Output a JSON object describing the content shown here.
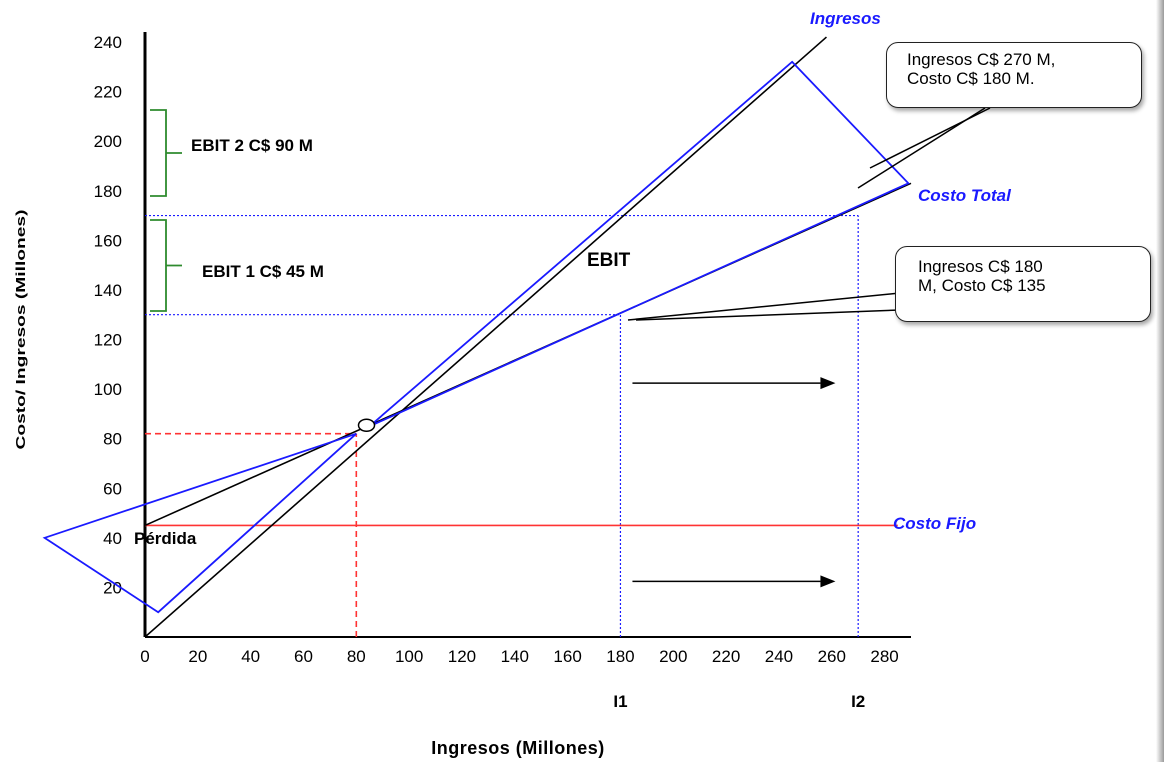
{
  "chart_data": {
    "type": "line",
    "xlabel": "Ingresos (Millones)",
    "ylabel": "Costo/ Ingresos (Millones)",
    "xlim": [
      0,
      290
    ],
    "ylim": [
      0,
      240
    ],
    "xticks": [
      0,
      20,
      40,
      60,
      80,
      100,
      120,
      140,
      160,
      180,
      200,
      220,
      240,
      260,
      280
    ],
    "yticks": [
      20,
      40,
      60,
      80,
      100,
      120,
      140,
      160,
      180,
      200,
      220,
      240
    ],
    "grid": false,
    "series": [
      {
        "name": "Ingresos",
        "color": "#1a1aff",
        "x": [
          0,
          258
        ],
        "y": [
          0,
          242
        ]
      },
      {
        "name": "Costo Total",
        "color": "#1a1aff",
        "x": [
          0,
          290
        ],
        "y": [
          45,
          183
        ]
      },
      {
        "name": "Costo Fijo",
        "color": "#ff3333",
        "x": [
          0,
          285
        ],
        "y": [
          45,
          45
        ]
      }
    ],
    "reference_lines": [
      {
        "type": "dotted-h",
        "color": "#1a1aff",
        "y": 130,
        "x": [
          0,
          180
        ]
      },
      {
        "type": "dotted-h",
        "color": "#1a1aff",
        "y": 170,
        "x": [
          0,
          270
        ]
      },
      {
        "type": "dotted-v",
        "color": "#1a1aff",
        "x": 180,
        "y": [
          0,
          130
        ]
      },
      {
        "type": "dotted-v",
        "color": "#1a1aff",
        "x": 270,
        "y": [
          0,
          170
        ]
      },
      {
        "type": "dashed-h",
        "color": "#ff3333",
        "y": 82,
        "x": [
          0,
          80
        ]
      },
      {
        "type": "dashed-v",
        "color": "#ff3333",
        "x": 80,
        "y": [
          0,
          82
        ]
      }
    ],
    "break_even": {
      "x": 85,
      "y": 85
    },
    "annotations": {
      "ingresos": "Ingresos",
      "costo_total": "Costo Total",
      "costo_fijo": "Costo Fijo",
      "perdida": "Pérdida",
      "ebit": "EBIT",
      "ebit1": "EBIT 1 C$ 45 M",
      "ebit2": "EBIT 2 C$ 90 M",
      "i1": "I1",
      "i2": "I2"
    },
    "callouts": [
      {
        "lines": [
          "Ingresos C$ 270 M,",
          "Costo C$ 180 M."
        ]
      },
      {
        "lines": [
          "Ingresos C$ 180",
          "M, Costo C$ 135"
        ]
      }
    ]
  }
}
